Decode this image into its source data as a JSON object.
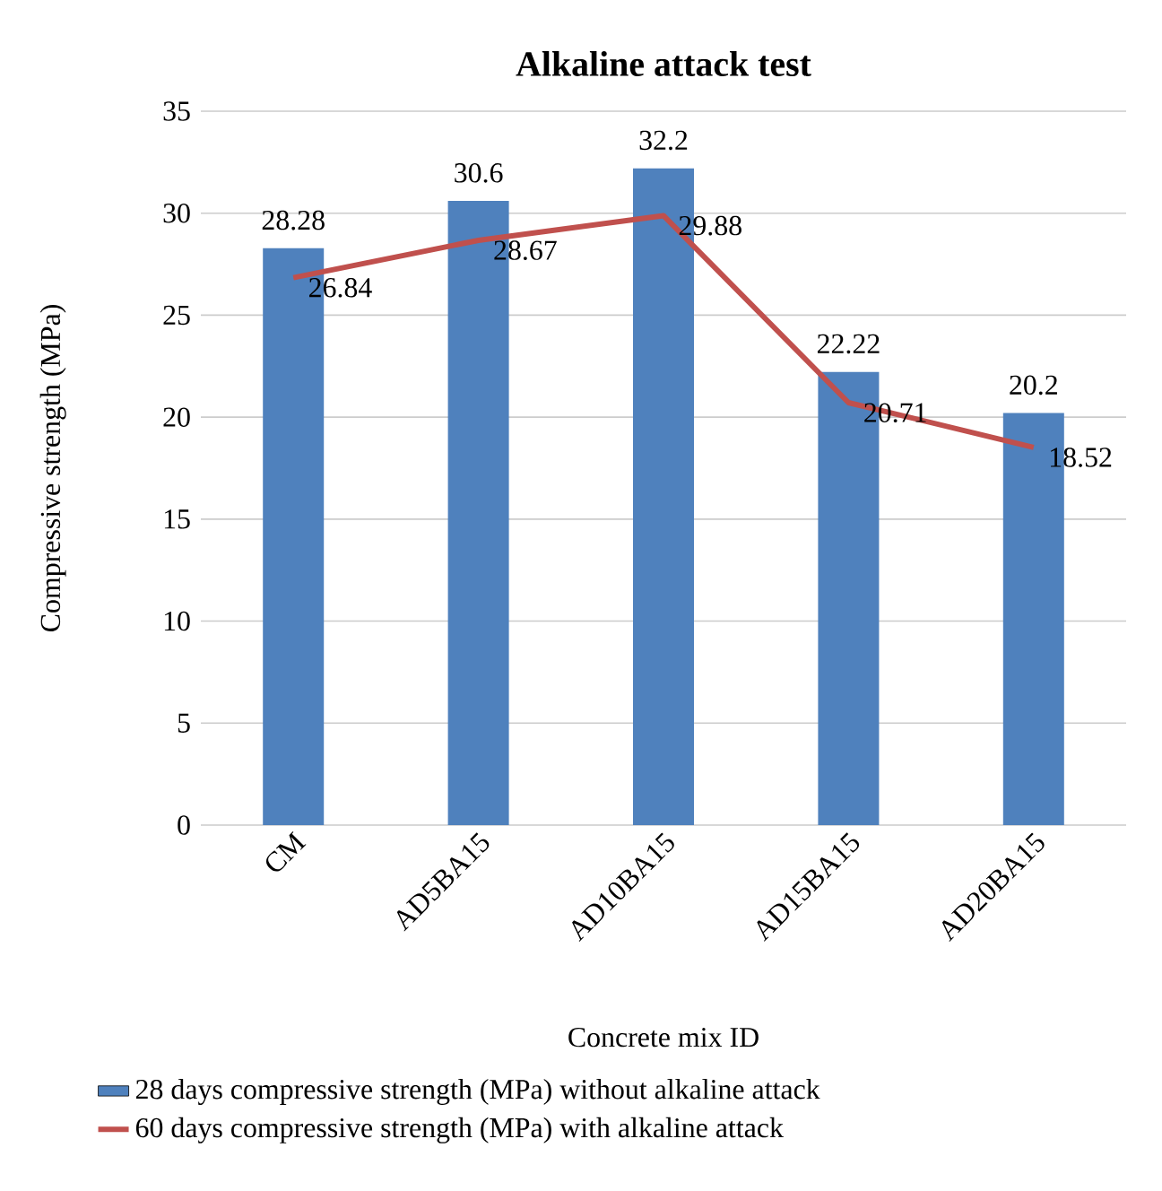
{
  "chart_data": {
    "type": "bar",
    "title": "Alkaline attack test",
    "xlabel": "Concrete mix ID",
    "ylabel": "Compressive strength (MPa)",
    "categories": [
      "CM",
      "AD5BA15",
      "AD10BA15",
      "AD15BA15",
      "AD20BA15"
    ],
    "series": [
      {
        "name": "28 days compressive strength (MPa) without alkaline attack",
        "color": "#4f81bd",
        "values": [
          28.28,
          30.6,
          32.2,
          22.22,
          20.2
        ]
      },
      {
        "name": "60 days compressive strength (MPa) with alkaline attack",
        "type": "line",
        "color": "#c0504d",
        "values": [
          26.84,
          28.67,
          29.88,
          20.71,
          18.52
        ]
      }
    ],
    "ylim": [
      0,
      35
    ],
    "yticks": [
      0,
      5,
      10,
      15,
      20,
      25,
      30,
      35
    ],
    "grid": "y",
    "legend": "bottom",
    "data_labels": true,
    "marker": "none"
  }
}
